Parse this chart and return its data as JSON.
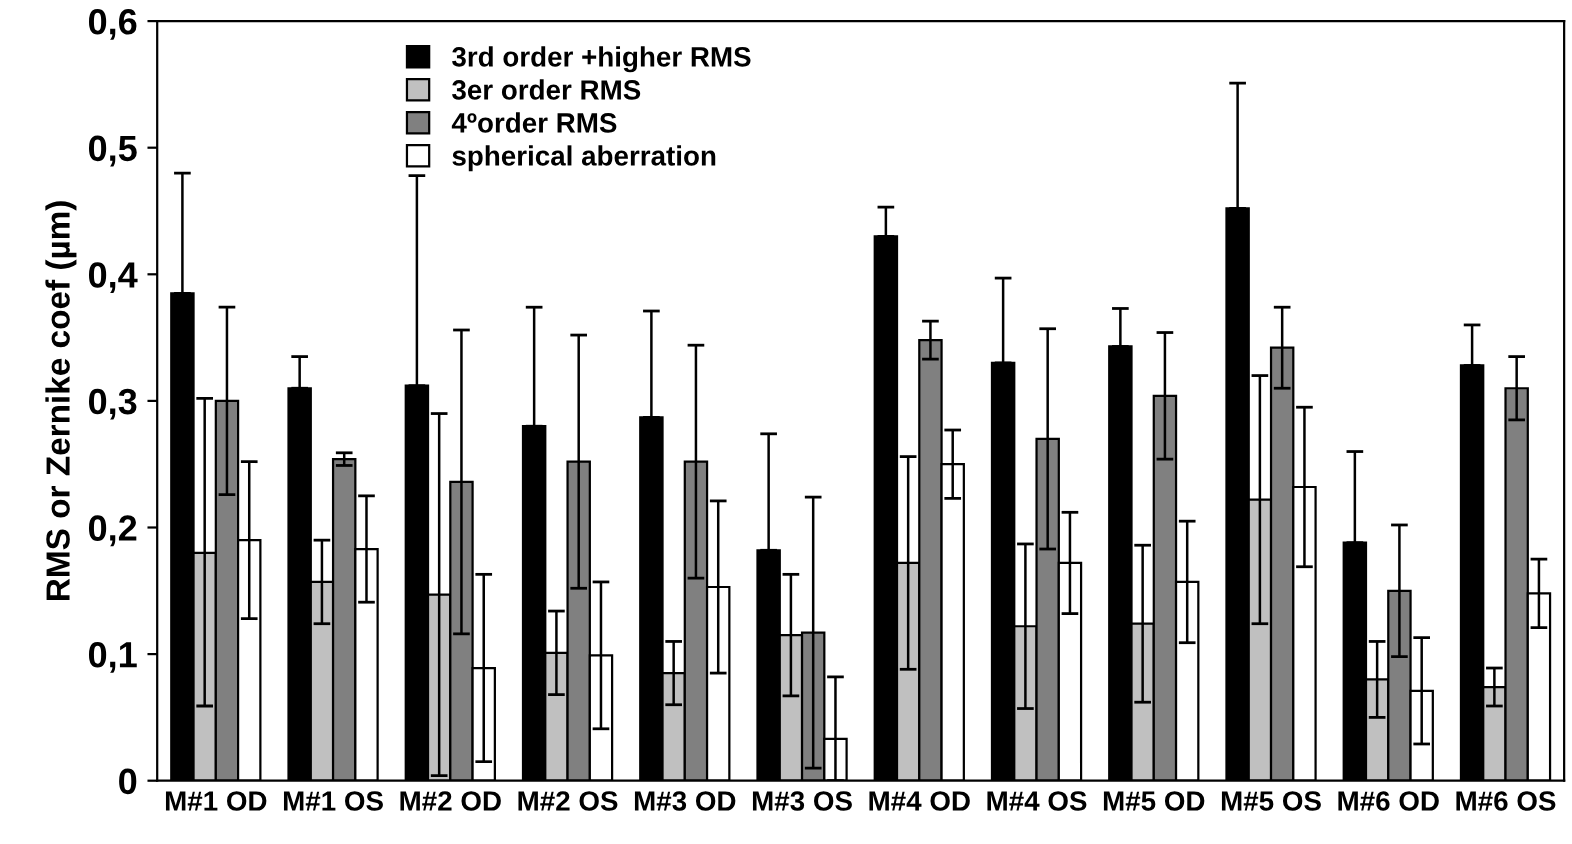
{
  "chart_data": {
    "type": "bar",
    "ylabel": "RMS or Zernike coef (µm)",
    "categories": [
      "M#1 OD",
      "M#1 OS",
      "M#2 OD",
      "M#2 OS",
      "M#3 OD",
      "M#3 OS",
      "M#4 OD",
      "M#4 OS",
      "M#5 OD",
      "M#5 OS",
      "M#6 OD",
      "M#6 OS"
    ],
    "series": [
      {
        "name": "3rd order +higher RMS",
        "color": "#000000",
        "values": [
          0.385,
          0.31,
          0.312,
          0.28,
          0.287,
          0.182,
          0.43,
          0.33,
          0.343,
          0.452,
          0.188,
          0.328
        ],
        "errors": [
          [
            0.385,
            0.48
          ],
          [
            0.31,
            0.335
          ],
          [
            0.312,
            0.478
          ],
          [
            0.28,
            0.374
          ],
          [
            0.287,
            0.371
          ],
          [
            0.182,
            0.274
          ],
          [
            0.43,
            0.453
          ],
          [
            0.33,
            0.397
          ],
          [
            0.343,
            0.373
          ],
          [
            0.452,
            0.551
          ],
          [
            0.188,
            0.26
          ],
          [
            0.328,
            0.36
          ]
        ]
      },
      {
        "name": "3er order RMS",
        "color": "#c0c0c0",
        "values": [
          0.18,
          0.157,
          0.147,
          0.101,
          0.085,
          0.115,
          0.172,
          0.122,
          0.124,
          0.222,
          0.08,
          0.074
        ],
        "errors": [
          [
            0.059,
            0.302
          ],
          [
            0.124,
            0.19
          ],
          [
            0.004,
            0.29
          ],
          [
            0.068,
            0.134
          ],
          [
            0.06,
            0.11
          ],
          [
            0.067,
            0.163
          ],
          [
            0.088,
            0.256
          ],
          [
            0.057,
            0.187
          ],
          [
            0.062,
            0.186
          ],
          [
            0.124,
            0.32
          ],
          [
            0.05,
            0.11
          ],
          [
            0.059,
            0.089
          ]
        ]
      },
      {
        "name": "4ºorder RMS",
        "color": "#808080",
        "values": [
          0.3,
          0.254,
          0.236,
          0.252,
          0.252,
          0.117,
          0.348,
          0.27,
          0.304,
          0.342,
          0.15,
          0.31
        ],
        "errors": [
          [
            0.226,
            0.374
          ],
          [
            0.249,
            0.259
          ],
          [
            0.116,
            0.356
          ],
          [
            0.152,
            0.352
          ],
          [
            0.16,
            0.344
          ],
          [
            0.01,
            0.224
          ],
          [
            0.333,
            0.363
          ],
          [
            0.183,
            0.357
          ],
          [
            0.254,
            0.354
          ],
          [
            0.31,
            0.374
          ],
          [
            0.098,
            0.202
          ],
          [
            0.285,
            0.335
          ]
        ]
      },
      {
        "name": "spherical aberration",
        "color": "#ffffff",
        "values": [
          0.19,
          0.183,
          0.089,
          0.099,
          0.153,
          0.033,
          0.25,
          0.172,
          0.157,
          0.232,
          0.071,
          0.148
        ],
        "errors": [
          [
            0.128,
            0.252
          ],
          [
            0.141,
            0.225
          ],
          [
            0.015,
            0.163
          ],
          [
            0.041,
            0.157
          ],
          [
            0.085,
            0.221
          ],
          [
            0,
            0.082
          ],
          [
            0.223,
            0.277
          ],
          [
            0.132,
            0.212
          ],
          [
            0.109,
            0.205
          ],
          [
            0.169,
            0.295
          ],
          [
            0.029,
            0.113
          ],
          [
            0.121,
            0.175
          ]
        ]
      }
    ],
    "ylim": [
      0,
      0.6
    ],
    "yticks": [
      0,
      {
        "value": 0.1,
        "label": "0,1"
      },
      {
        "value": 0.2,
        "label": "0,2"
      },
      {
        "value": 0.3,
        "label": "0,3"
      },
      {
        "value": 0.4,
        "label": "0,4"
      },
      {
        "value": 0.5,
        "label": "0,5"
      },
      {
        "value": 0.6,
        "label": "0,6"
      }
    ],
    "grid": false,
    "legend": "top"
  }
}
